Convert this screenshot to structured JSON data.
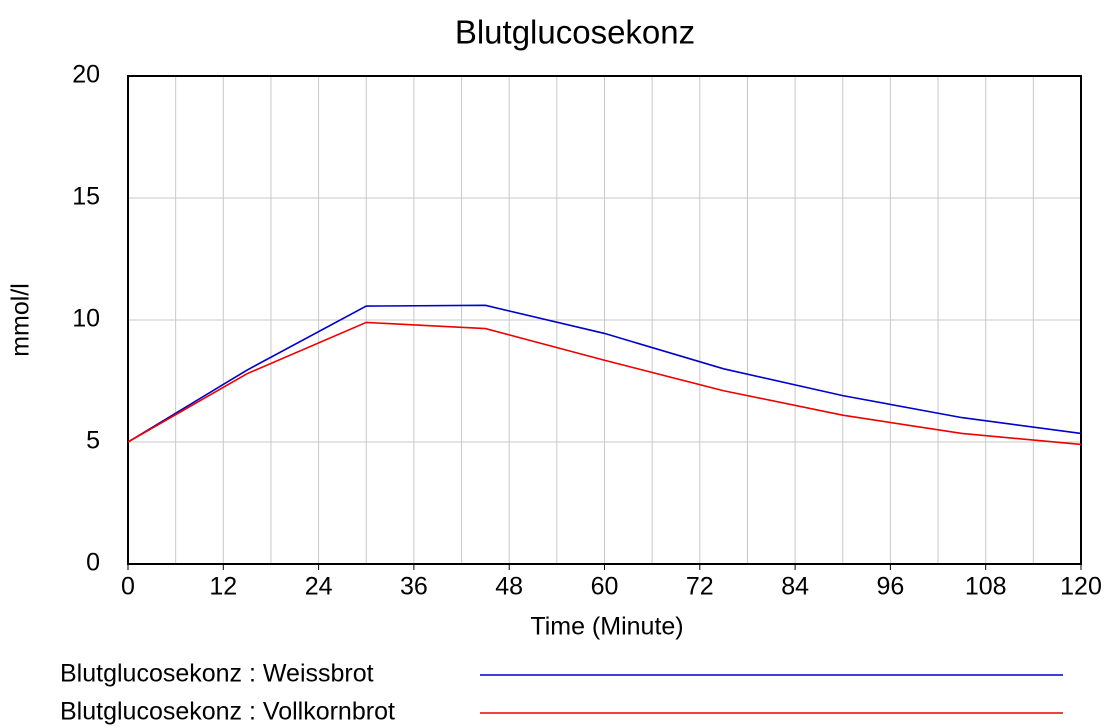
{
  "chart_data": {
    "type": "line",
    "title": "Blutglucosekonz",
    "x_label": "Time (Minute)",
    "y_label": "mmol/l",
    "x": [
      0,
      15,
      30,
      45,
      60,
      75,
      90,
      105,
      120
    ],
    "series": [
      {
        "name": "Blutglucosekonz : Weissbrot",
        "color": "#0000cc",
        "values": [
          5.0,
          7.95,
          10.57,
          10.6,
          9.45,
          8.0,
          6.9,
          6.0,
          5.35
        ]
      },
      {
        "name": "Blutglucosekonz : Vollkornbrot",
        "color": "#ee0000",
        "values": [
          5.0,
          7.8,
          9.9,
          9.65,
          8.35,
          7.1,
          6.1,
          5.35,
          4.9
        ]
      }
    ],
    "xlim": [
      0,
      120
    ],
    "xticks": [
      0,
      12,
      24,
      36,
      48,
      60,
      72,
      84,
      96,
      108,
      120
    ],
    "x_gridlines": [
      6,
      12,
      18,
      24,
      30,
      36,
      42,
      48,
      54,
      60,
      66,
      72,
      78,
      84,
      90,
      96,
      102,
      108,
      114
    ],
    "ylim": [
      0,
      20
    ],
    "yticks": [
      0,
      5,
      10,
      15,
      20
    ],
    "grid": true,
    "legend": "bottom"
  }
}
